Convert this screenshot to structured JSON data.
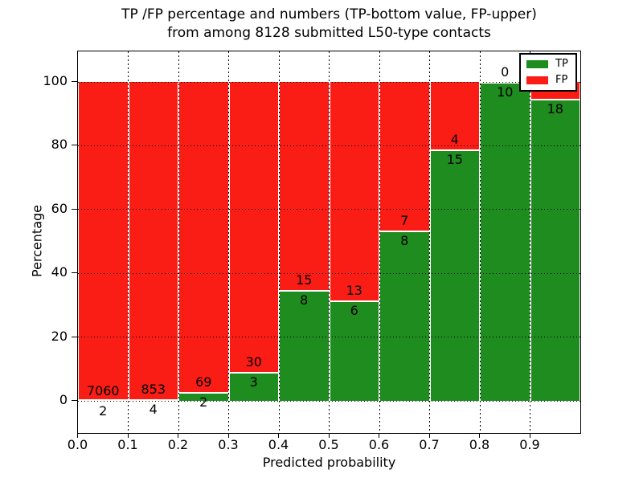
{
  "chart_data": {
    "type": "bar",
    "stacked": true,
    "title_line1": "TP /FP percentage and numbers (TP-bottom value, FP-upper)",
    "title_line2": "from among 8128 submitted L50-type contacts",
    "xlabel": "Predicted probability",
    "ylabel": "Percentage",
    "x_tick_labels": [
      "0.0",
      "0.1",
      "0.2",
      "0.3",
      "0.4",
      "0.5",
      "0.6",
      "0.7",
      "0.8",
      "0.9"
    ],
    "y_tick_labels": [
      "0",
      "20",
      "40",
      "60",
      "80",
      "100"
    ],
    "y_tick_values": [
      0,
      20,
      40,
      60,
      80,
      100
    ],
    "ylim_display": [
      -10,
      110
    ],
    "grid": true,
    "colors": {
      "tp_green": "#1e8c1e",
      "fp_red": "#f91d15",
      "grid_black": "#000000",
      "background": "#ffffff"
    },
    "legend": {
      "position": "upper-right",
      "items": [
        {
          "label": "TP",
          "color": "#1e8c1e"
        },
        {
          "label": "FP",
          "color": "#f91d15"
        }
      ]
    },
    "bins": [
      {
        "x_start": 0.0,
        "x_end": 0.1,
        "tp_count": "2",
        "fp_count": "7060",
        "tp_pct": 0.03,
        "fp_label_visible": true
      },
      {
        "x_start": 0.1,
        "x_end": 0.2,
        "tp_count": "4",
        "fp_count": "853",
        "tp_pct": 0.47,
        "fp_label_visible": true
      },
      {
        "x_start": 0.2,
        "x_end": 0.3,
        "tp_count": "2",
        "fp_count": "69",
        "tp_pct": 2.8,
        "fp_label_visible": true
      },
      {
        "x_start": 0.3,
        "x_end": 0.4,
        "tp_count": "3",
        "fp_count": "30",
        "tp_pct": 9.1,
        "fp_label_visible": true
      },
      {
        "x_start": 0.4,
        "x_end": 0.5,
        "tp_count": "8",
        "fp_count": "15",
        "tp_pct": 34.8,
        "fp_label_visible": true
      },
      {
        "x_start": 0.5,
        "x_end": 0.6,
        "tp_count": "6",
        "fp_count": "13",
        "tp_pct": 31.6,
        "fp_label_visible": true
      },
      {
        "x_start": 0.6,
        "x_end": 0.7,
        "tp_count": "8",
        "fp_count": "7",
        "tp_pct": 53.3,
        "fp_label_visible": true
      },
      {
        "x_start": 0.7,
        "x_end": 0.8,
        "tp_count": "15",
        "fp_count": "4",
        "tp_pct": 78.9,
        "fp_label_visible": true
      },
      {
        "x_start": 0.8,
        "x_end": 0.9,
        "tp_count": "10",
        "fp_count": "0",
        "tp_pct": 100,
        "fp_label_visible": true
      },
      {
        "x_start": 0.9,
        "x_end": 1.0,
        "tp_count": "18",
        "fp_count": "",
        "tp_pct": 94.7,
        "fp_label_visible": false
      }
    ]
  }
}
